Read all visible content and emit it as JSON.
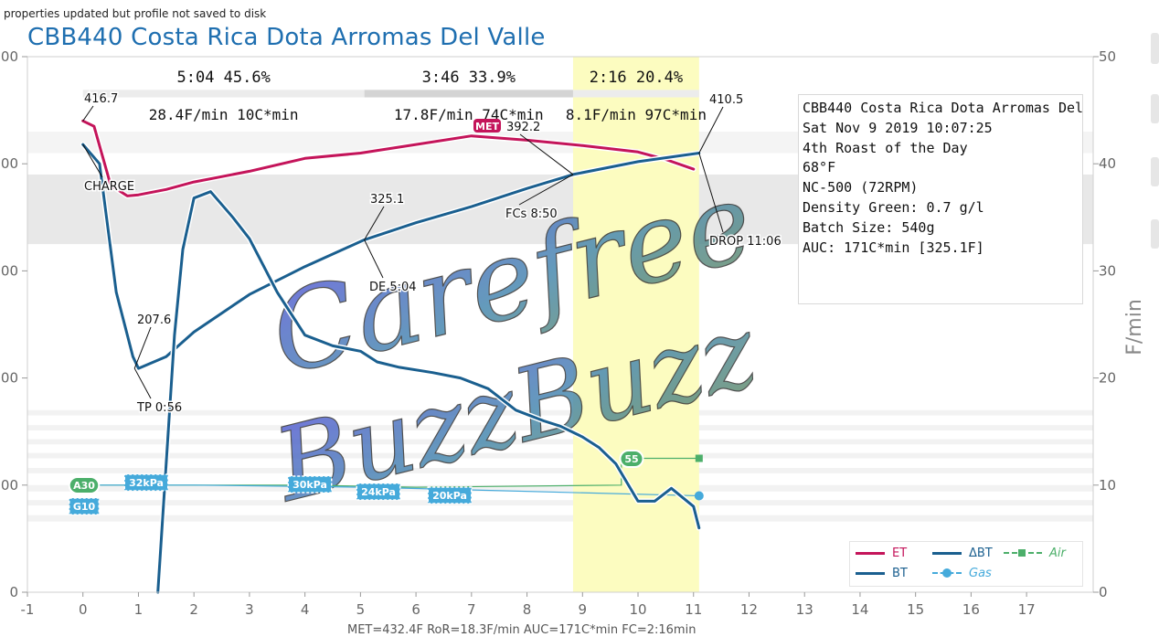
{
  "status_message": "properties updated but profile not saved to disk",
  "roast_title": "CBB440 Costa Rica Dota Arromas Del Valle",
  "bottom_status": "MET=432.4F  RoR=18.3F/min  AUC=171C*min  FC=2:16min",
  "info_box": [
    "CBB440 Costa Rica Dota Arromas Del ..",
    "Sat Nov 9 2019 10:07:25",
    "4th Roast of the Day",
    "68°F",
    "NC-500 (72RPM)",
    "",
    "Density Green: 0.7 g/l",
    "Batch Size: 540g",
    "",
    "AUC: 171C*min [325.1F]"
  ],
  "watermark": {
    "line1": "Carefree",
    "line2": "BuzzBuzz"
  },
  "legend": {
    "et": "ET",
    "bt": "BT",
    "dbt": "ΔBT",
    "gas": "Gas",
    "air": "Air"
  },
  "colors": {
    "et": "#c4145a",
    "bt": "#1a5f8f",
    "dbt": "#1a5f8f",
    "gas": "#45aadb",
    "air": "#4caf6a",
    "phase_highlight": "#fcfcc0",
    "title": "#1f6fb0"
  },
  "chart_data": {
    "type": "line",
    "x_ticks": [
      "-1",
      "0",
      "1",
      "2",
      "3",
      "4",
      "5",
      "6",
      "7",
      "8",
      "9",
      "10",
      "11",
      "12",
      "13",
      "14",
      "15",
      "16",
      "17"
    ],
    "y_left_ticks": [
      "0",
      "00",
      "00",
      "00",
      "00",
      "00"
    ],
    "y_right_ticks": [
      "0",
      "10",
      "20",
      "30",
      "40",
      "50"
    ],
    "y_right_label": "F/min",
    "xlim": [
      -1,
      18.2
    ],
    "y_right_lim": [
      0,
      50
    ],
    "phases": [
      {
        "time": "5:04",
        "percent": "45.6%",
        "ror": "28.4F/min",
        "auc": "10C*min",
        "start": 0,
        "end": 5.07
      },
      {
        "time": "3:46",
        "percent": "33.9%",
        "ror": "17.8F/min",
        "auc": "74C*min",
        "start": 5.07,
        "end": 8.83
      },
      {
        "time": "2:16",
        "percent": "20.4%",
        "ror": "8.1F/min",
        "auc": "97C*min",
        "start": 8.83,
        "end": 11.1
      }
    ],
    "series": [
      {
        "name": "ET",
        "points": [
          [
            0,
            44.0
          ],
          [
            0.2,
            43.5
          ],
          [
            0.5,
            38.0
          ],
          [
            0.8,
            37.0
          ],
          [
            1.0,
            37.1
          ],
          [
            1.5,
            37.6
          ],
          [
            2,
            38.3
          ],
          [
            3,
            39.3
          ],
          [
            4,
            40.5
          ],
          [
            5,
            41.0
          ],
          [
            6,
            41.8
          ],
          [
            7,
            42.6
          ],
          [
            8,
            42.2
          ],
          [
            9,
            41.7
          ],
          [
            10,
            41.1
          ],
          [
            10.5,
            40.4
          ],
          [
            11.0,
            39.5
          ]
        ]
      },
      {
        "name": "BT",
        "points": [
          [
            0,
            41.8
          ],
          [
            0.3,
            40.0
          ],
          [
            0.6,
            28.0
          ],
          [
            0.9,
            22.0
          ],
          [
            1.0,
            20.9
          ],
          [
            1.5,
            22.0
          ],
          [
            2,
            24.3
          ],
          [
            3,
            27.8
          ],
          [
            4,
            30.4
          ],
          [
            5.07,
            32.9
          ],
          [
            6,
            34.5
          ],
          [
            7,
            36.0
          ],
          [
            8,
            37.7
          ],
          [
            8.83,
            39.0
          ],
          [
            10,
            40.2
          ],
          [
            11.1,
            41.0
          ]
        ]
      },
      {
        "name": "ΔBT",
        "points": [
          [
            1.35,
            0
          ],
          [
            1.5,
            12
          ],
          [
            1.65,
            24
          ],
          [
            1.8,
            32
          ],
          [
            2.0,
            36.8
          ],
          [
            2.3,
            37.4
          ],
          [
            2.7,
            35.0
          ],
          [
            3.0,
            33.0
          ],
          [
            3.5,
            28.0
          ],
          [
            4.0,
            24.0
          ],
          [
            4.5,
            23.0
          ],
          [
            5.0,
            22.5
          ],
          [
            5.3,
            21.5
          ],
          [
            5.7,
            21.0
          ],
          [
            6.3,
            20.5
          ],
          [
            6.8,
            20.0
          ],
          [
            7.3,
            19.0
          ],
          [
            7.8,
            17.0
          ],
          [
            8.3,
            16.0
          ],
          [
            8.6,
            15.5
          ],
          [
            9.0,
            14.5
          ],
          [
            9.3,
            13.5
          ],
          [
            9.6,
            12.0
          ],
          [
            10.0,
            8.5
          ],
          [
            10.3,
            8.5
          ],
          [
            10.6,
            9.7
          ],
          [
            11.0,
            8.0
          ],
          [
            11.1,
            6.0
          ]
        ]
      },
      {
        "name": "Gas",
        "points": [
          [
            0,
            10.0
          ],
          [
            1,
            10.0
          ],
          [
            2,
            10.0
          ],
          [
            5.1,
            9.8
          ],
          [
            11.1,
            9.0
          ]
        ]
      },
      {
        "name": "Air",
        "points": [
          [
            0,
            10.0
          ],
          [
            4,
            10.0
          ],
          [
            6,
            9.8
          ],
          [
            9.7,
            10.0
          ],
          [
            9.7,
            12.5
          ],
          [
            11.1,
            12.5
          ]
        ]
      }
    ],
    "events": [
      {
        "label": "CHARGE",
        "x": 0
      },
      {
        "label": "TP 0:56",
        "x": 0.93,
        "value": "207.6"
      },
      {
        "label": "DE 5:04",
        "x": 5.07,
        "value": "325.1"
      },
      {
        "label": "FCs 8:50",
        "x": 8.83,
        "value": "392.2"
      },
      {
        "label": "DROP 11:06",
        "x": 11.1,
        "value": "410.5"
      },
      {
        "label": "416.7",
        "x": 0
      }
    ],
    "control_labels": [
      {
        "text": "A30",
        "x": 0,
        "y": 10.0,
        "color": "#4caf6a"
      },
      {
        "text": "G10",
        "x": 0,
        "y": 7.9,
        "color": "#45aadb"
      },
      {
        "text": "32kPa",
        "x": 1.1,
        "y": 10.2,
        "color": "#45aadb"
      },
      {
        "text": "30kPa",
        "x": 4.0,
        "y": 10.0,
        "color": "#45aadb"
      },
      {
        "text": "24kPa",
        "x": 5.2,
        "y": 9.4,
        "color": "#45aadb"
      },
      {
        "text": "20kPa",
        "x": 6.5,
        "y": 9.0,
        "color": "#45aadb"
      },
      {
        "text": "55",
        "x": 9.7,
        "y": 12.3,
        "color": "#4caf6a"
      }
    ],
    "met_label": "MET"
  }
}
